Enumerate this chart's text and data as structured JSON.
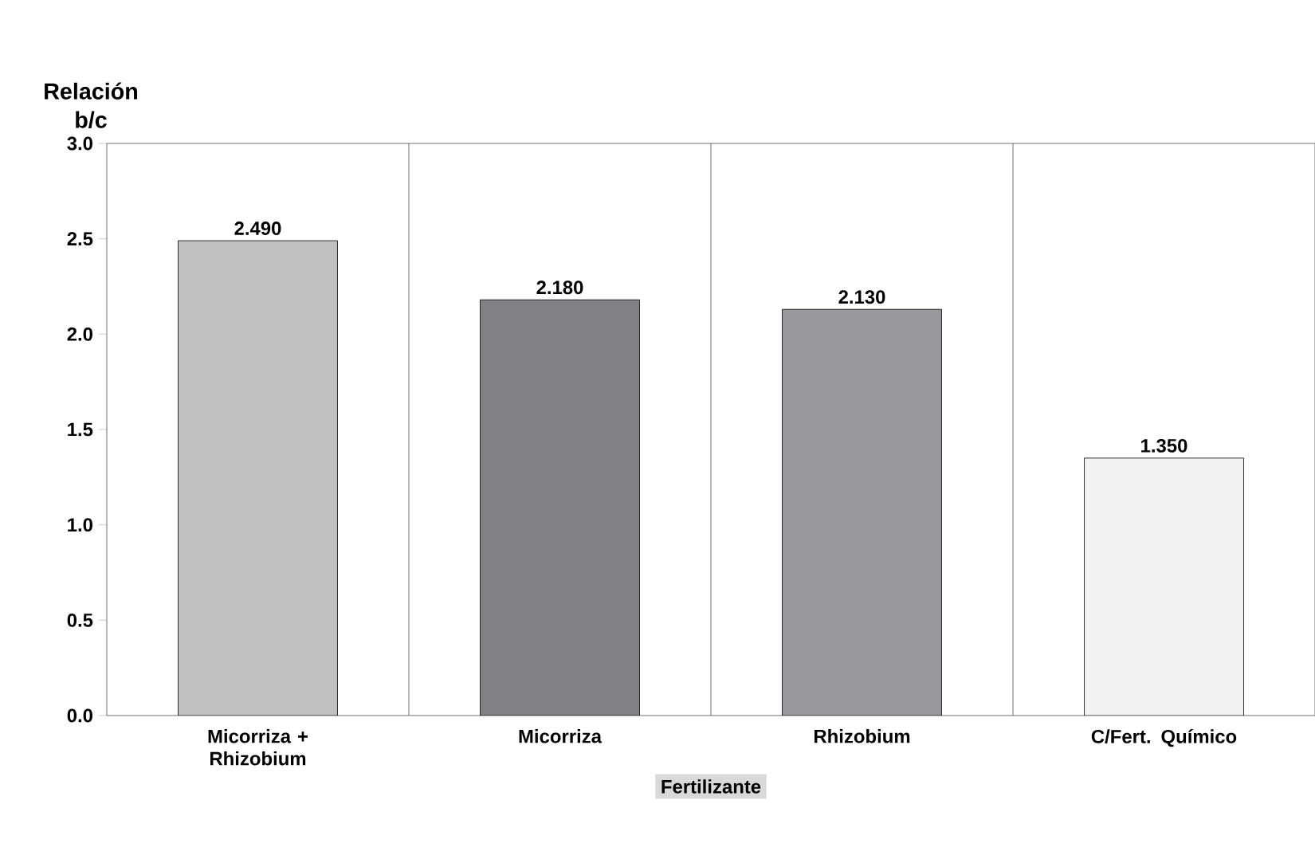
{
  "chart_data": {
    "type": "bar",
    "ylabel": "Relación b/c",
    "xlabel": "Fertilizante",
    "categories": [
      "Micorriza + Rhizobium",
      "Micorriza",
      "Rhizobium",
      "C/Fert. Químico"
    ],
    "values": [
      2.49,
      2.18,
      2.13,
      1.35
    ],
    "colors": [
      "#c0c0c0",
      "#808085",
      "#98989c",
      "#f2f2f2"
    ],
    "value_labels": [
      "2.490",
      "2.180",
      "2.130",
      "1.350"
    ],
    "ylim": [
      0,
      3
    ],
    "yticks": [
      {
        "value": 0,
        "label": "0.0"
      },
      {
        "value": 0.5,
        "label": "0.5"
      },
      {
        "value": 1,
        "label": "1.0"
      },
      {
        "value": 1.5,
        "label": "1.5"
      },
      {
        "value": 2,
        "label": "2.0"
      },
      {
        "value": 2.5,
        "label": "2.5"
      },
      {
        "value": 3,
        "label": "3.0"
      }
    ],
    "grid": "x"
  }
}
